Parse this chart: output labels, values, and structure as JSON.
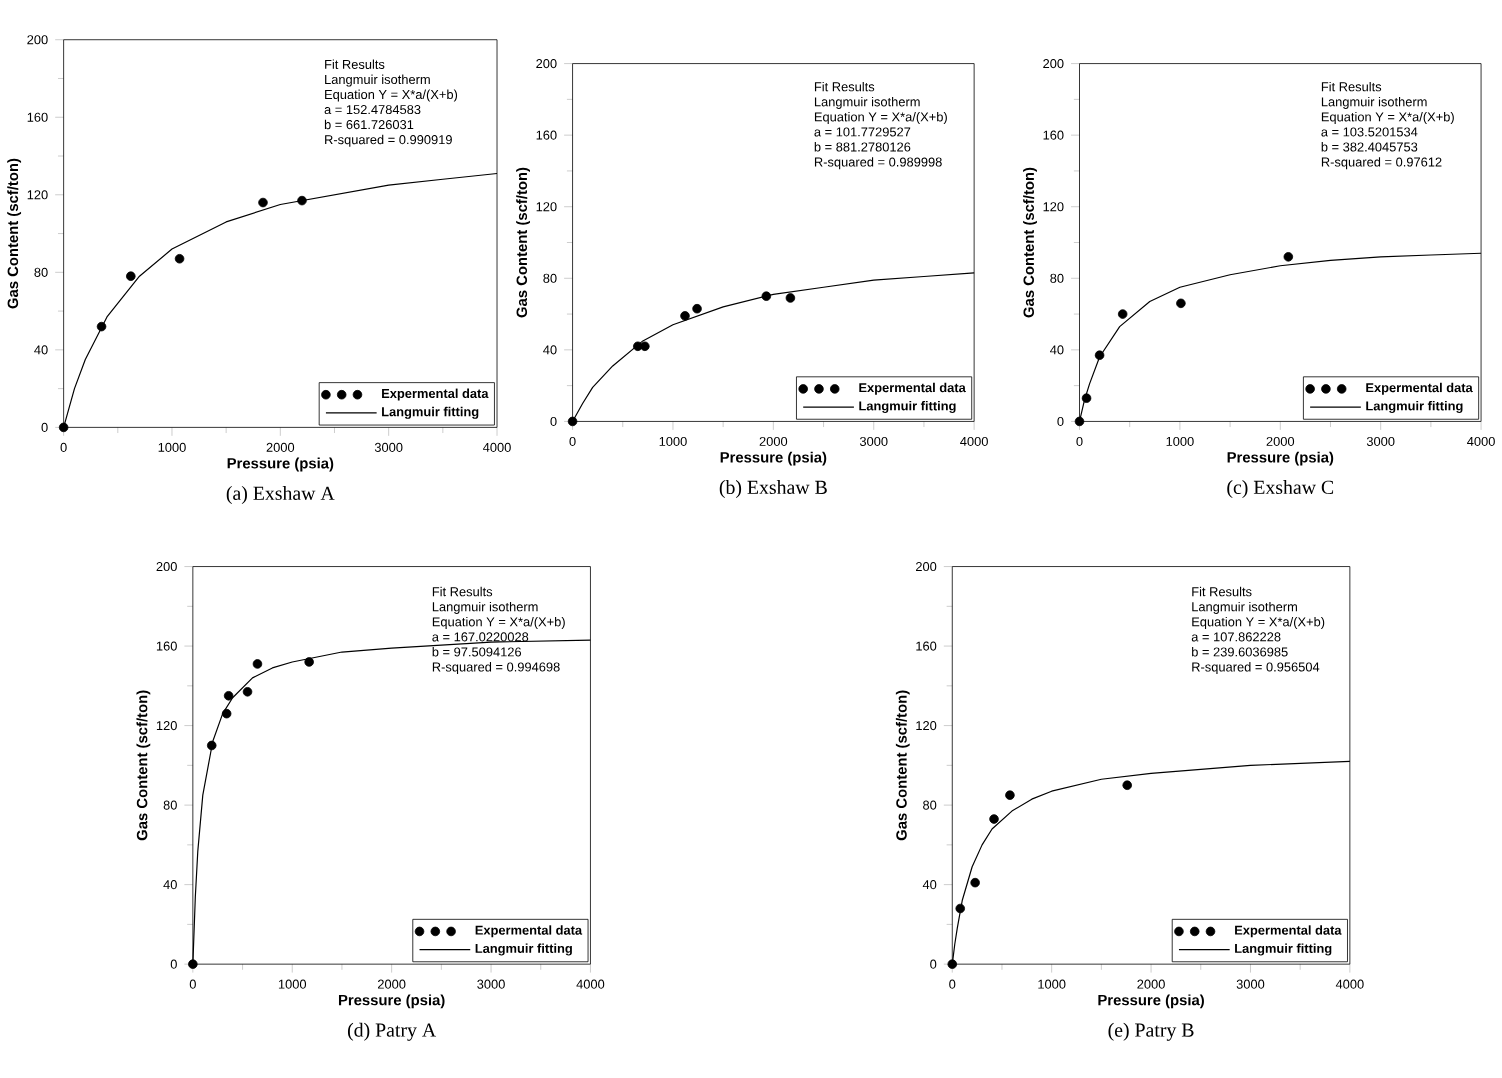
{
  "chart_data": [
    {
      "type": "line",
      "title": "(a)  Exshaw  A",
      "xlabel": "Pressure (psia)",
      "ylabel": "Gas Content (scf/ton)",
      "xlim": [
        0,
        4000
      ],
      "ylim": [
        0,
        200
      ],
      "xticks": [
        0,
        1000,
        2000,
        3000,
        4000
      ],
      "yticks": [
        0,
        40,
        80,
        120,
        160,
        200
      ],
      "legend": "bottom right",
      "annotations": [
        "Fit Results",
        "Langmuir isotherm",
        "Equation Y = X*a/(X+b)",
        "a = 152.4784583",
        "b = 661.726031",
        "R-squared = 0.990919"
      ],
      "series": [
        {
          "name": "Expermental data",
          "type": "scatter",
          "marker": "circle",
          "color": "#000000",
          "x": [
            0,
            350,
            620,
            1070,
            1840,
            2200
          ],
          "values": [
            0,
            52,
            78,
            87,
            116,
            117
          ]
        },
        {
          "name": "Langmuir fitting",
          "marker": "none",
          "color": "#000000",
          "x": [
            0,
            100,
            200,
            400,
            700,
            1000,
            1500,
            2000,
            2500,
            3000,
            3500,
            4000
          ],
          "values": [
            0,
            20,
            35,
            57,
            78,
            92,
            106,
            115,
            120,
            125,
            128,
            131
          ]
        }
      ]
    },
    {
      "type": "line",
      "title": "(b)  Exshaw  B",
      "xlabel": "Pressure (psia)",
      "ylabel": "Gas Content (scf/ton)",
      "xlim": [
        0,
        4000
      ],
      "ylim": [
        0,
        200
      ],
      "xticks": [
        0,
        1000,
        2000,
        3000,
        4000
      ],
      "yticks": [
        0,
        40,
        80,
        120,
        160,
        200
      ],
      "legend": "bottom right",
      "annotations": [
        "Fit Results",
        "Langmuir isotherm",
        "Equation Y = X*a/(X+b)",
        "a = 101.7729527",
        "b = 881.2780126",
        "R-squared = 0.989998"
      ],
      "series": [
        {
          "name": "Expermental data",
          "type": "scatter",
          "marker": "circle",
          "color": "#000000",
          "x": [
            0,
            650,
            720,
            1120,
            1240,
            1930,
            2170
          ],
          "values": [
            0,
            42,
            42,
            59,
            63,
            70,
            69
          ]
        },
        {
          "name": "Langmuir fitting",
          "marker": "none",
          "color": "#000000",
          "x": [
            0,
            100,
            200,
            400,
            700,
            1000,
            1500,
            2000,
            2500,
            3000,
            3500,
            4000
          ],
          "values": [
            0,
            10,
            19,
            31,
            45,
            54,
            64,
            71,
            75,
            79,
            81,
            83
          ]
        }
      ]
    },
    {
      "type": "line",
      "title": "(c)  Exshaw  C",
      "xlabel": "Pressure (psia)",
      "ylabel": "Gas Content (scf/ton)",
      "xlim": [
        0,
        4000
      ],
      "ylim": [
        0,
        200
      ],
      "xticks": [
        0,
        1000,
        2000,
        3000,
        4000
      ],
      "yticks": [
        0,
        40,
        80,
        120,
        160,
        200
      ],
      "legend": "bottom right",
      "annotations": [
        "Fit Results",
        "Langmuir isotherm",
        "Equation Y = X*a/(X+b)",
        "a = 103.5201534",
        "b = 382.4045753",
        "R-squared = 0.97612"
      ],
      "series": [
        {
          "name": "Expermental data",
          "type": "scatter",
          "marker": "circle",
          "color": "#000000",
          "x": [
            0,
            70,
            200,
            430,
            1010,
            2080
          ],
          "values": [
            0,
            13,
            37,
            60,
            66,
            92
          ]
        },
        {
          "name": "Langmuir fitting",
          "marker": "none",
          "color": "#000000",
          "x": [
            0,
            50,
            100,
            200,
            400,
            700,
            1000,
            1500,
            2000,
            2500,
            3000,
            3500,
            4000
          ],
          "values": [
            0,
            12,
            21,
            36,
            53,
            67,
            75,
            82,
            87,
            90,
            92,
            93,
            94
          ]
        }
      ]
    },
    {
      "type": "line",
      "title": "(d)  Patry  A",
      "xlabel": "Pressure (psia)",
      "ylabel": "Gas Content (scf/ton)",
      "xlim": [
        0,
        4000
      ],
      "ylim": [
        0,
        200
      ],
      "xticks": [
        0,
        1000,
        2000,
        3000,
        4000
      ],
      "yticks": [
        0,
        40,
        80,
        120,
        160,
        200
      ],
      "legend": "bottom right",
      "annotations": [
        "Fit Results",
        "Langmuir isotherm",
        "Equation Y = X*a/(X+b)",
        "a = 167.0220028",
        "b = 97.5094126",
        "R-squared = 0.994698"
      ],
      "series": [
        {
          "name": "Expermental data",
          "type": "scatter",
          "marker": "circle",
          "color": "#000000",
          "x": [
            0,
            190,
            340,
            360,
            550,
            650,
            1170
          ],
          "values": [
            0,
            110,
            126,
            135,
            137,
            151,
            152
          ]
        },
        {
          "name": "Langmuir fitting",
          "marker": "none",
          "color": "#000000",
          "x": [
            0,
            25,
            50,
            100,
            200,
            300,
            400,
            600,
            800,
            1000,
            1500,
            2000,
            3000,
            4000
          ],
          "values": [
            0,
            34,
            57,
            85,
            112,
            126,
            134,
            144,
            149,
            152,
            157,
            159,
            162,
            163
          ]
        }
      ]
    },
    {
      "type": "line",
      "title": "(e)  Patry  B",
      "xlabel": "Pressure (psia)",
      "ylabel": "Gas Content (scf/ton)",
      "xlim": [
        0,
        4000
      ],
      "ylim": [
        0,
        200
      ],
      "xticks": [
        0,
        1000,
        2000,
        3000,
        4000
      ],
      "yticks": [
        0,
        40,
        80,
        120,
        160,
        200
      ],
      "legend": "bottom right",
      "annotations": [
        "Fit Results",
        "Langmuir isotherm",
        "Equation Y = X*a/(X+b)",
        "a = 107.862228",
        "b = 239.6036985",
        "R-squared = 0.956504"
      ],
      "series": [
        {
          "name": "Expermental data",
          "type": "scatter",
          "marker": "circle",
          "color": "#000000",
          "x": [
            0,
            80,
            230,
            420,
            580,
            1760
          ],
          "values": [
            0,
            28,
            41,
            73,
            85,
            90
          ]
        },
        {
          "name": "Langmuir fitting",
          "marker": "none",
          "color": "#000000",
          "x": [
            0,
            25,
            50,
            100,
            200,
            300,
            400,
            600,
            800,
            1000,
            1500,
            2000,
            3000,
            4000
          ],
          "values": [
            0,
            10,
            18,
            32,
            49,
            60,
            68,
            77,
            83,
            87,
            93,
            96,
            100,
            102
          ]
        }
      ]
    }
  ]
}
